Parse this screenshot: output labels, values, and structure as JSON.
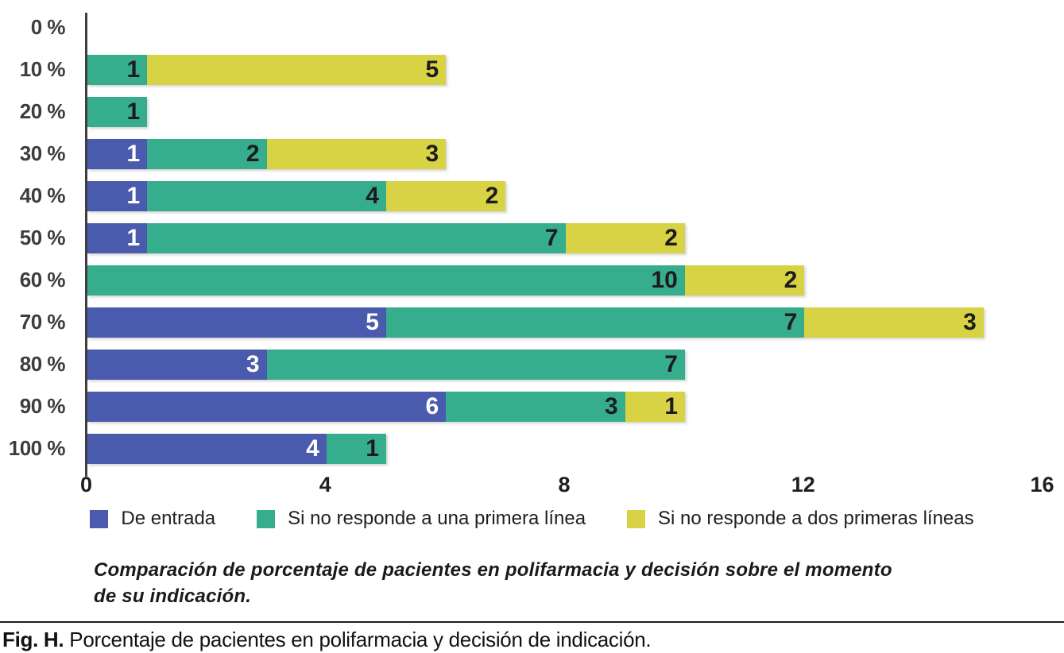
{
  "chart_data": {
    "type": "bar",
    "orientation": "horizontal",
    "stacked": true,
    "grid": false,
    "title": "",
    "xlabel": "",
    "ylabel": "",
    "categories": [
      "0 %",
      "10 %",
      "20 %",
      "30 %",
      "40 %",
      "50 %",
      "60 %",
      "70 %",
      "80 %",
      "90 %",
      "100 %"
    ],
    "series": [
      {
        "name": "De entrada",
        "color": "#4a5bad",
        "label_color": "#ffffff",
        "values": [
          0,
          0,
          0,
          1,
          1,
          1,
          0,
          5,
          3,
          6,
          4
        ]
      },
      {
        "name": "Si no responde a una primera línea",
        "color": "#36ad8c",
        "label_color": "#1c1c1c",
        "values": [
          0,
          1,
          1,
          2,
          4,
          7,
          10,
          7,
          7,
          3,
          1
        ]
      },
      {
        "name": "Si no responde a dos primeras líneas",
        "color": "#d8d344",
        "label_color": "#1c1c1c",
        "values": [
          0,
          5,
          0,
          3,
          2,
          2,
          2,
          3,
          0,
          1,
          0
        ]
      }
    ],
    "xlim": [
      0,
      16
    ],
    "xticks": [
      0,
      4,
      8,
      12,
      16
    ],
    "legend_position": "bottom",
    "axis_color": "#3f3f3f",
    "caption": "Comparación de porcentaje de pacientes en polifarmacia y decisión sobre el momento de su indicación."
  },
  "figure": {
    "label": "Fig. H.",
    "caption": "Porcentaje de pacientes en polifarmacia y decisión de indicación."
  }
}
